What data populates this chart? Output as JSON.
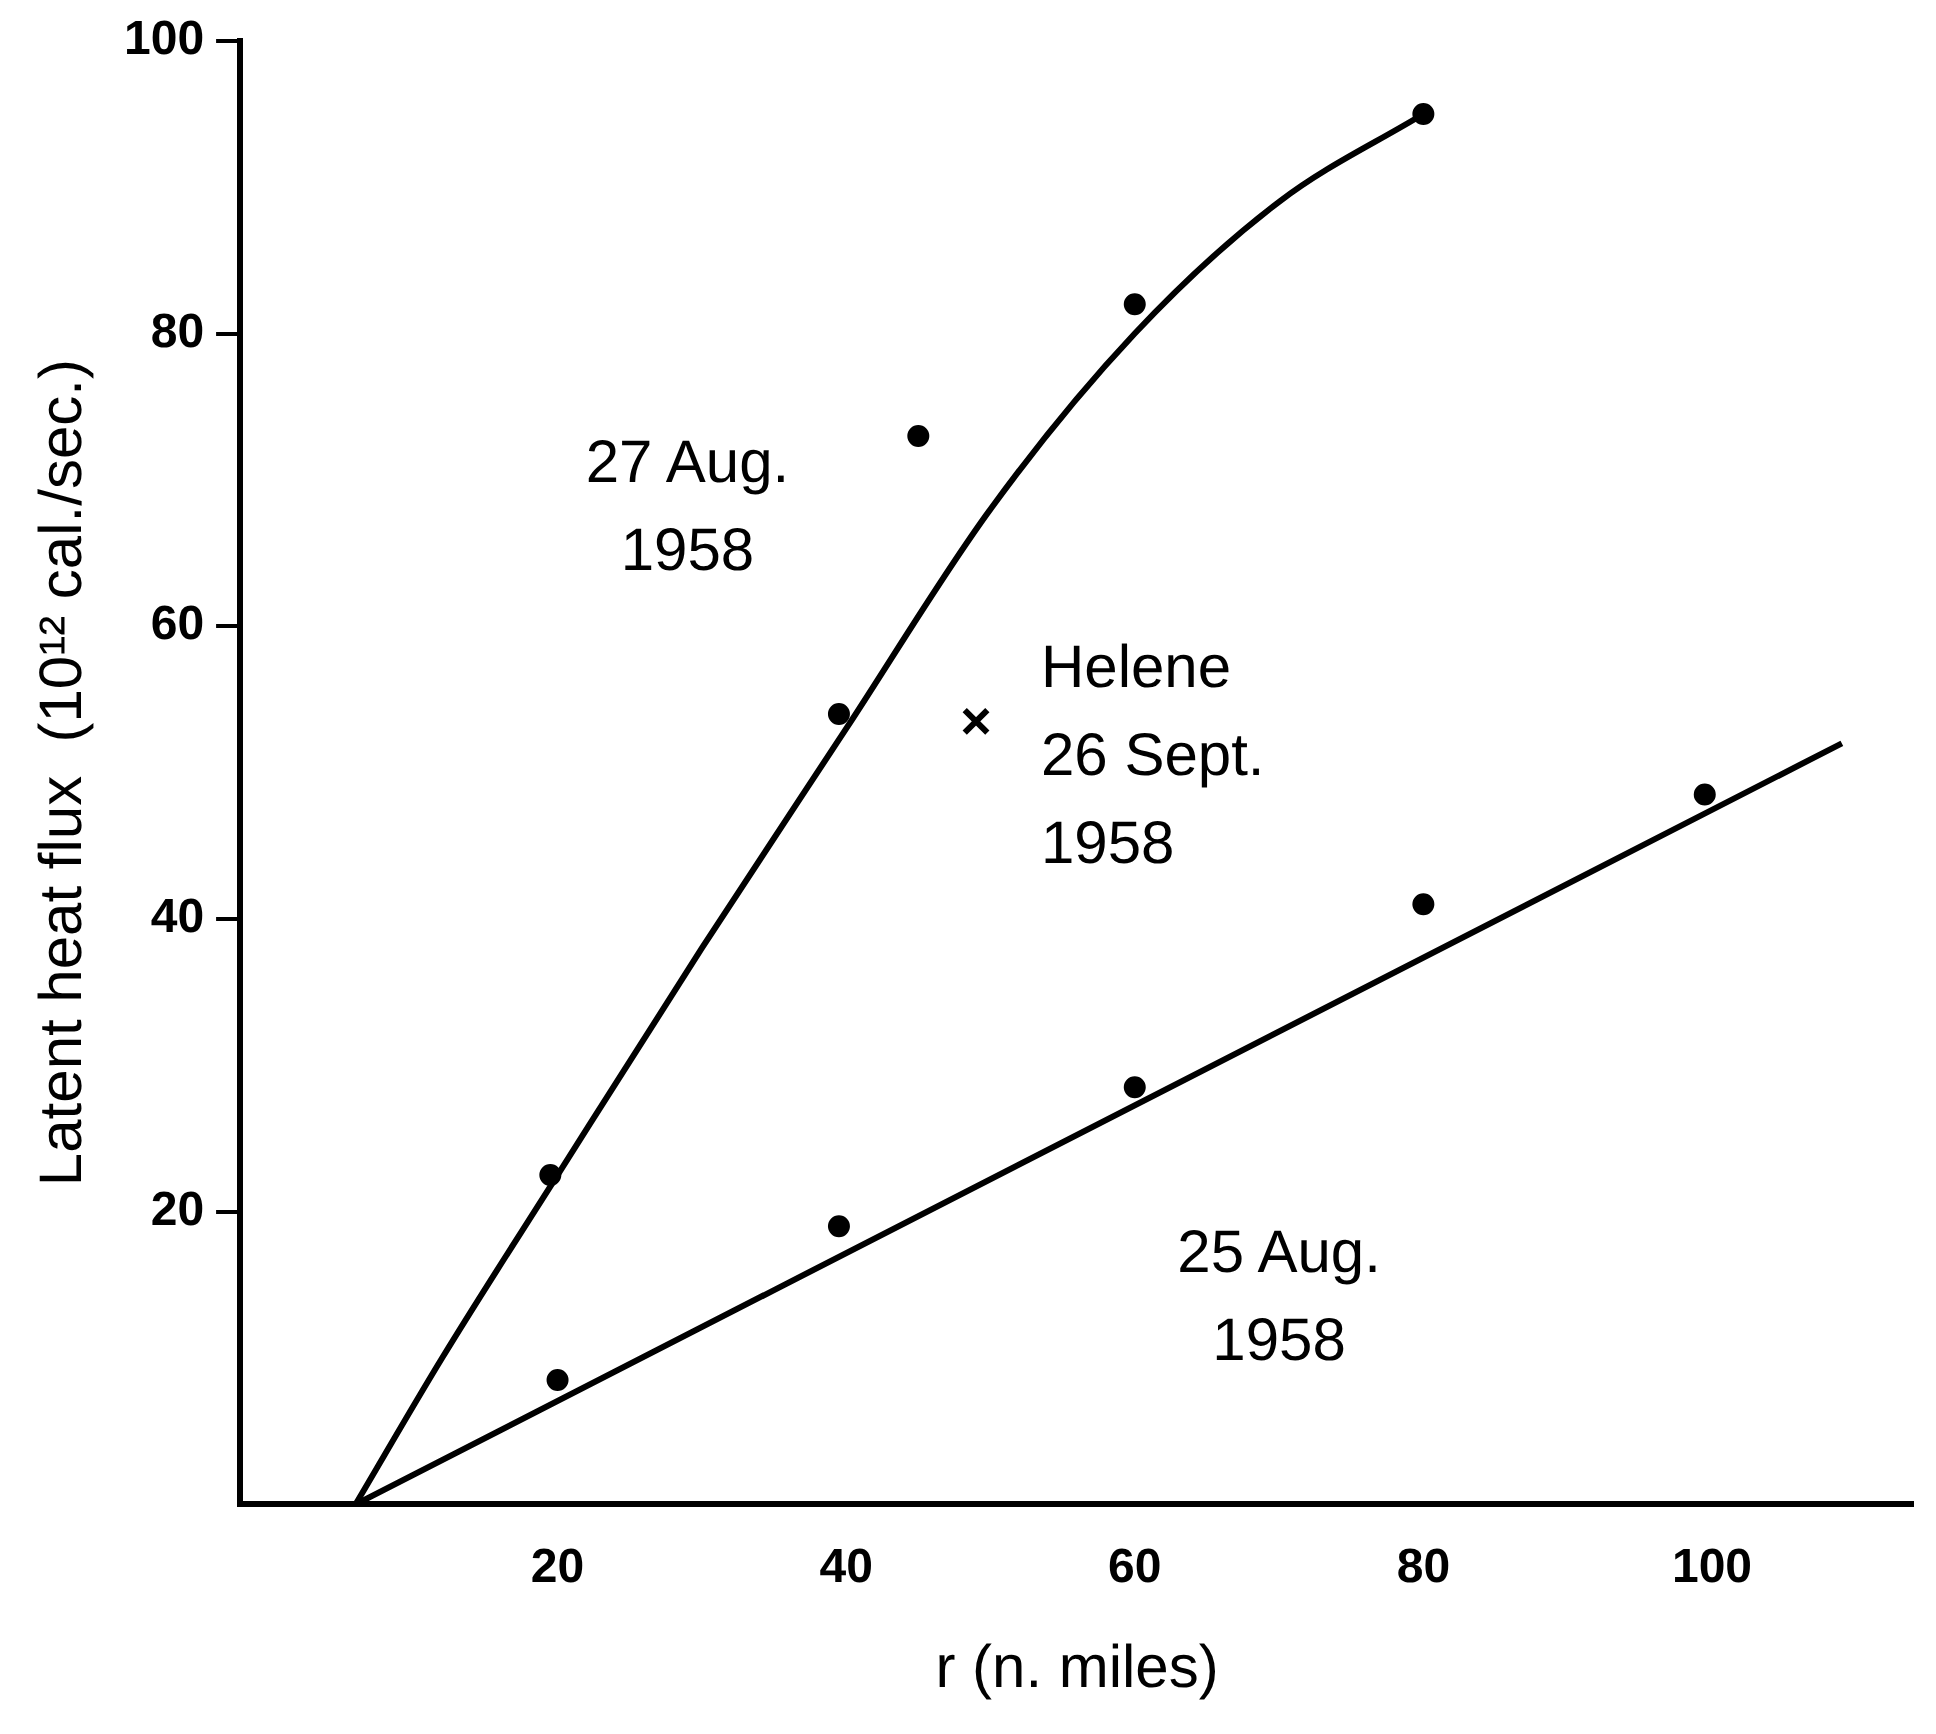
{
  "chart_data": {
    "type": "scatter",
    "xlabel": "r (n. miles)",
    "ylabel": "Latent heat flux  (10¹² cal./sec.)",
    "xlim": [
      -2,
      114
    ],
    "ylim": [
      0,
      100
    ],
    "xticks": [
      20,
      40,
      60,
      80,
      100
    ],
    "yticks": [
      20,
      40,
      60,
      80,
      100
    ],
    "grid": false,
    "legend": false,
    "series": [
      {
        "type": "line",
        "color": "#000000",
        "marker": "none",
        "x": [
          6,
          12,
          20,
          30,
          40,
          50,
          60,
          70,
          80
        ],
        "values": [
          0,
          10,
          22.5,
          38,
          53,
          68,
          80,
          89,
          95
        ]
      },
      {
        "name": "27 Aug. 1958",
        "color": "#000000",
        "marker": "circle",
        "x": [
          19.5,
          39.5,
          45,
          60,
          80
        ],
        "values": [
          22.5,
          54,
          73,
          82,
          95
        ]
      },
      {
        "type": "line",
        "color": "#000000",
        "marker": "none",
        "x": [
          6,
          109
        ],
        "values": [
          0,
          52
        ]
      },
      {
        "name": "25 Aug. 1958",
        "color": "#000000",
        "marker": "circle",
        "x": [
          20,
          39.5,
          60,
          80,
          99.5
        ],
        "values": [
          8.5,
          19,
          28.5,
          41,
          48.5
        ]
      },
      {
        "name": "Helene 26 Sept. 1958",
        "color": "#000000",
        "marker": "cross",
        "x": [
          49
        ],
        "values": [
          53.5
        ]
      }
    ]
  }
}
